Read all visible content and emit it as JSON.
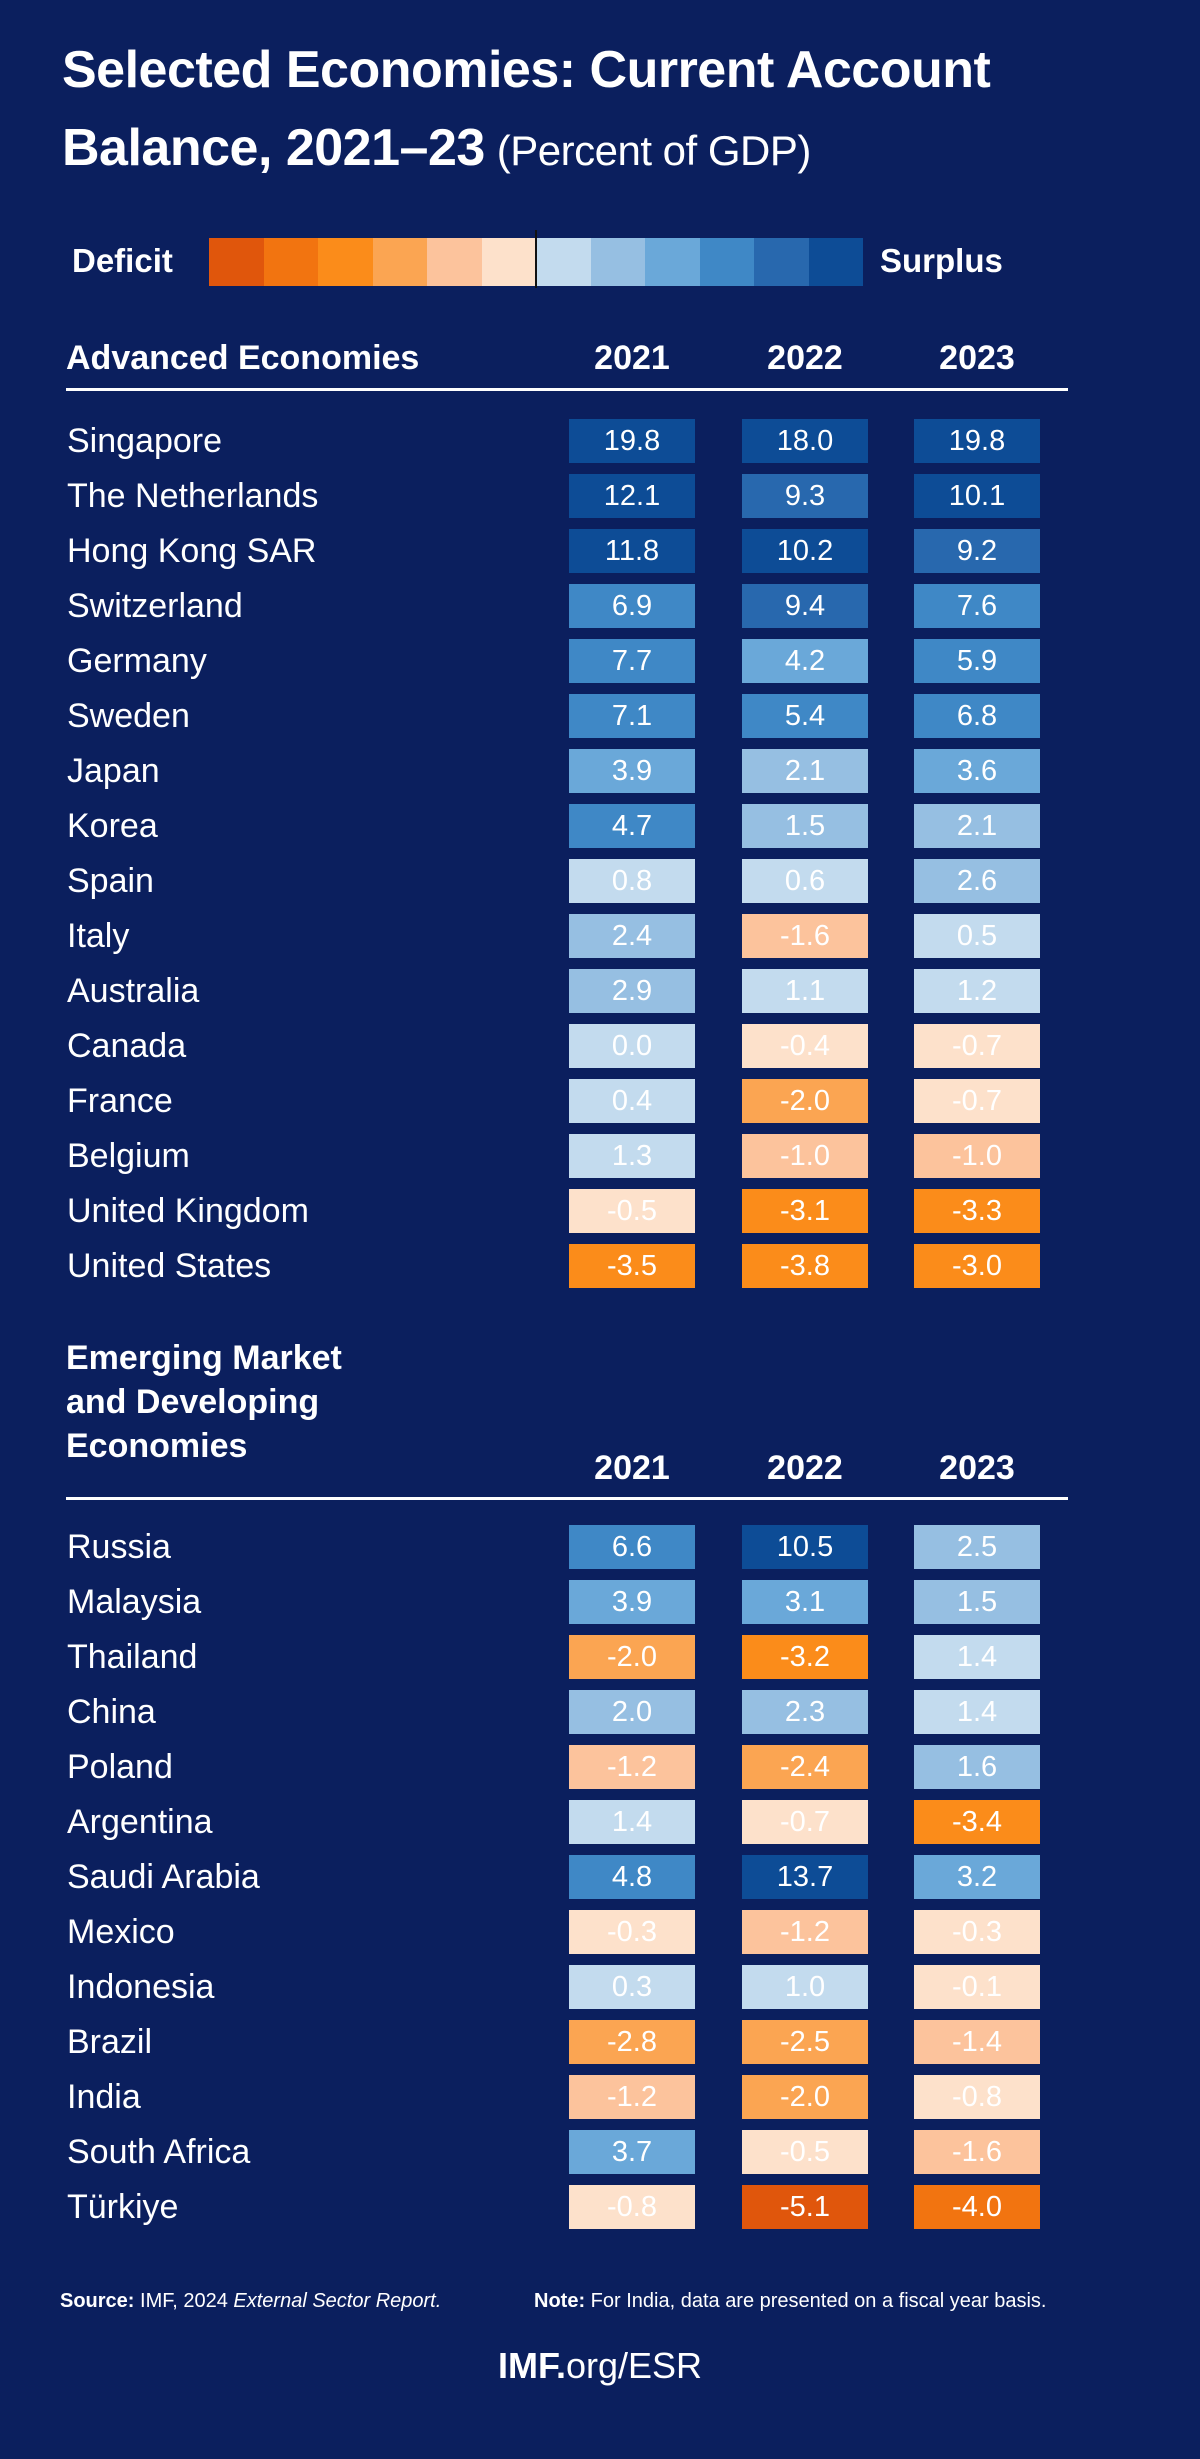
{
  "chart_data": {
    "type": "table",
    "title_line1": "Selected Economies: Current Account",
    "title_line2": "Balance, 2021–23",
    "subtitle": "(Percent of GDP)",
    "legend": {
      "left_label": "Deficit",
      "right_label": "Surplus",
      "colors": [
        "#e0560c",
        "#f27410",
        "#fb8c1a",
        "#fba552",
        "#fcc39c",
        "#fde1cb",
        "#c3dbee",
        "#96bfe2",
        "#6aa8d9",
        "#3f88c6",
        "#2868ae",
        "#0d4c96"
      ]
    },
    "columns": [
      "2021",
      "2022",
      "2023"
    ],
    "sections": [
      {
        "header": [
          "Advanced Economies"
        ],
        "rows": [
          {
            "name": "Singapore",
            "values": [
              19.8,
              18.0,
              19.8
            ]
          },
          {
            "name": "The Netherlands",
            "values": [
              12.1,
              9.3,
              10.1
            ]
          },
          {
            "name": "Hong Kong SAR",
            "values": [
              11.8,
              10.2,
              9.2
            ]
          },
          {
            "name": "Switzerland",
            "values": [
              6.9,
              9.4,
              7.6
            ]
          },
          {
            "name": "Germany",
            "values": [
              7.7,
              4.2,
              5.9
            ]
          },
          {
            "name": "Sweden",
            "values": [
              7.1,
              5.4,
              6.8
            ]
          },
          {
            "name": "Japan",
            "values": [
              3.9,
              2.1,
              3.6
            ]
          },
          {
            "name": "Korea",
            "values": [
              4.7,
              1.5,
              2.1
            ]
          },
          {
            "name": "Spain",
            "values": [
              0.8,
              0.6,
              2.6
            ]
          },
          {
            "name": "Italy",
            "values": [
              2.4,
              -1.6,
              0.5
            ]
          },
          {
            "name": "Australia",
            "values": [
              2.9,
              1.1,
              1.2
            ]
          },
          {
            "name": "Canada",
            "values": [
              0.0,
              -0.4,
              -0.7
            ]
          },
          {
            "name": "France",
            "values": [
              0.4,
              -2.0,
              -0.7
            ]
          },
          {
            "name": "Belgium",
            "values": [
              1.3,
              -1.0,
              -1.0
            ]
          },
          {
            "name": "United Kingdom",
            "values": [
              -0.5,
              -3.1,
              -3.3
            ]
          },
          {
            "name": "United States",
            "values": [
              -3.5,
              -3.8,
              -3.0
            ]
          }
        ]
      },
      {
        "header": [
          "Emerging Market",
          "and Developing",
          "Economies"
        ],
        "rows": [
          {
            "name": "Russia",
            "values": [
              6.6,
              10.5,
              2.5
            ]
          },
          {
            "name": "Malaysia",
            "values": [
              3.9,
              3.1,
              1.5
            ]
          },
          {
            "name": "Thailand",
            "values": [
              -2.0,
              -3.2,
              1.4
            ]
          },
          {
            "name": "China",
            "values": [
              2.0,
              2.3,
              1.4
            ]
          },
          {
            "name": "Poland",
            "values": [
              -1.2,
              -2.4,
              1.6
            ]
          },
          {
            "name": "Argentina",
            "values": [
              1.4,
              -0.7,
              -3.4
            ]
          },
          {
            "name": "Saudi Arabia",
            "values": [
              4.8,
              13.7,
              3.2
            ]
          },
          {
            "name": "Mexico",
            "values": [
              -0.3,
              -1.2,
              -0.3
            ]
          },
          {
            "name": "Indonesia",
            "values": [
              0.3,
              1.0,
              -0.1
            ]
          },
          {
            "name": "Brazil",
            "values": [
              -2.8,
              -2.5,
              -1.4
            ]
          },
          {
            "name": "India",
            "values": [
              -1.2,
              -2.0,
              -0.8
            ]
          },
          {
            "name": "South Africa",
            "values": [
              3.7,
              -0.5,
              -1.6
            ]
          },
          {
            "name": "Türkiye",
            "values": [
              -0.8,
              -5.1,
              -4.0
            ]
          }
        ]
      }
    ]
  },
  "footer": {
    "source_label": "Source:",
    "source_text": " IMF, 2024 ",
    "source_italic": "External Sector Report.",
    "note_label": "Note:",
    "note_text": " For India, data are presented on a fiscal year basis.",
    "url_bold": "IMF.",
    "url_rest": "org/ESR"
  },
  "background_color": "#0b1f5e"
}
